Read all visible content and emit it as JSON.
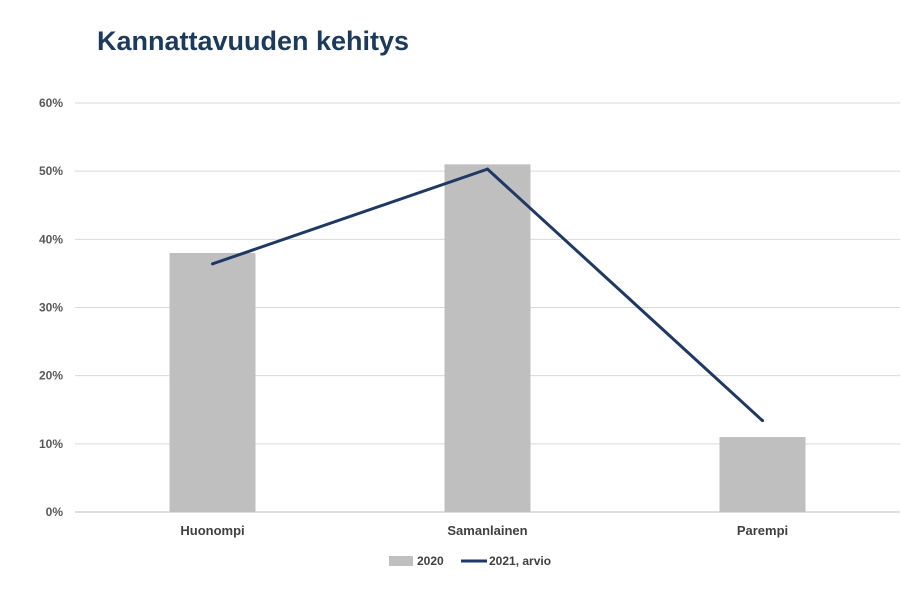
{
  "chart_data": {
    "type": "bar",
    "title": "Kannattavuuden kehitys",
    "categories": [
      "Huonompi",
      "Samanlainen",
      "Parempi"
    ],
    "y_ticks": [
      "0%",
      "10%",
      "20%",
      "30%",
      "40%",
      "50%",
      "60%"
    ],
    "ylim": [
      0,
      60
    ],
    "grid": true,
    "legend_position": "bottom",
    "series": [
      {
        "name": "2020",
        "kind": "bar",
        "color": "#bfbfbf",
        "values": [
          38,
          51,
          11
        ]
      },
      {
        "name": "2021, arvio",
        "kind": "line",
        "color": "#1f3864",
        "values": [
          36.4,
          50.3,
          13.4
        ]
      }
    ]
  }
}
